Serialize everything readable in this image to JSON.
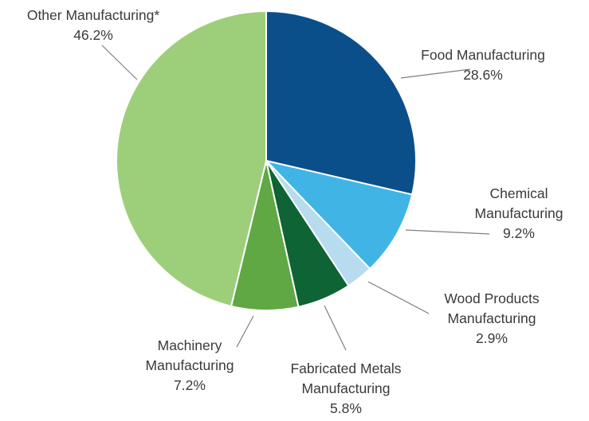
{
  "chart_data": {
    "type": "pie",
    "start_angle_deg": 0,
    "direction": "clockwise",
    "slices": [
      {
        "label": "Food Manufacturing",
        "label_lines": [
          "Food Manufacturing"
        ],
        "value": 28.6,
        "value_text": "28.6%",
        "color": "#0b4f8a"
      },
      {
        "label": "Chemical Manufacturing",
        "label_lines": [
          "Chemical",
          "Manufacturing"
        ],
        "value": 9.2,
        "value_text": "9.2%",
        "color": "#41b4e6"
      },
      {
        "label": "Wood Products Manufacturing",
        "label_lines": [
          "Wood Products",
          "Manufacturing"
        ],
        "value": 2.9,
        "value_text": "2.9%",
        "color": "#b7dcef"
      },
      {
        "label": "Fabricated Metals Manufacturing",
        "label_lines": [
          "Fabricated Metals",
          "Manufacturing"
        ],
        "value": 5.8,
        "value_text": "5.8%",
        "color": "#0e6434"
      },
      {
        "label": "Machinery Manufacturing",
        "label_lines": [
          "Machinery",
          "Manufacturing"
        ],
        "value": 7.2,
        "value_text": "7.2%",
        "color": "#5fa844"
      },
      {
        "label": "Other Manufacturing*",
        "label_lines": [
          "Other Manufacturing*"
        ],
        "value": 46.2,
        "value_text": "46.2%",
        "color": "#9dcf7b"
      }
    ]
  }
}
